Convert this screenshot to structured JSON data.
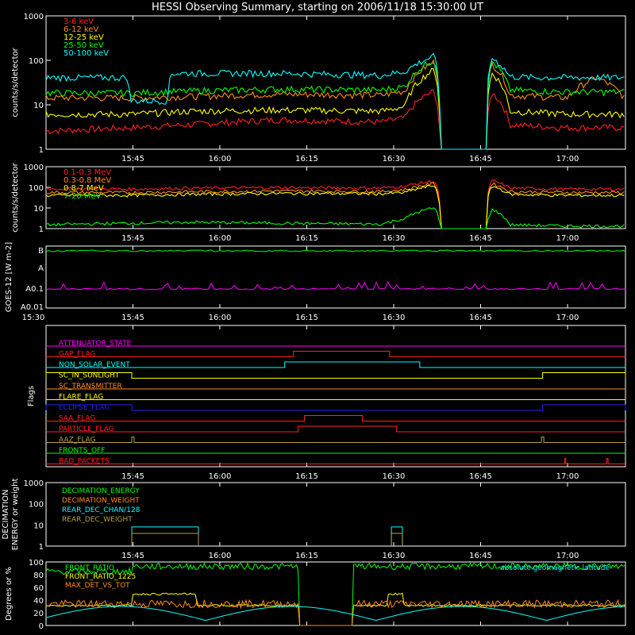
{
  "title": "HESSI Observing Summary, starting on 2006/11/18 15:30:00 UT",
  "time_ticks": [
    "15:45",
    "16:00",
    "16:15",
    "16:30",
    "16:45",
    "17:00"
  ],
  "start_label": "15:30",
  "colors": {
    "red": "#ff2020",
    "orange": "#ff8c1a",
    "yellow": "#ffff00",
    "green": "#00ff00",
    "cyan": "#00ffff",
    "magenta": "#ff00ff",
    "blue": "#2020ff",
    "olive": "#b8a040",
    "white": "#ffffff"
  },
  "chart_data": [
    {
      "type": "line",
      "name": "panel-lightcurves-low",
      "ylabel": "counts/s/detector",
      "scale": "log",
      "ylim": [
        1,
        1000
      ],
      "yticks": [
        "1",
        "10",
        "100",
        "1000"
      ],
      "xlim": [
        "15:30",
        "17:10"
      ],
      "legend": [
        "3-6 keV",
        "6-12 keV",
        "12-25 keV",
        "25-50 keV",
        "50-100 keV"
      ],
      "series": [
        {
          "name": "3-6 keV",
          "color": "red",
          "x": [
            0,
            15,
            25,
            40,
            58,
            62,
            67,
            68,
            76,
            77,
            80,
            85,
            90,
            95,
            100
          ],
          "y": [
            2.5,
            3,
            3.5,
            4.5,
            4,
            5,
            20,
            1,
            1,
            18,
            3.5,
            3.2,
            3,
            3,
            3
          ]
        },
        {
          "name": "6-12 keV",
          "color": "orange",
          "x": [
            0,
            15,
            25,
            40,
            58,
            62,
            67,
            68,
            76,
            77,
            80,
            85,
            90,
            95,
            100
          ],
          "y": [
            14,
            14,
            15,
            17,
            16,
            20,
            90,
            1,
            1,
            80,
            16,
            15,
            14,
            40,
            13
          ]
        },
        {
          "name": "12-25 keV",
          "color": "yellow",
          "x": [
            0,
            15,
            25,
            40,
            58,
            62,
            67,
            68,
            76,
            77,
            80,
            85,
            90,
            95,
            100
          ],
          "y": [
            6,
            6,
            7,
            7.5,
            7,
            9,
            60,
            1,
            1,
            50,
            7,
            6.5,
            6,
            6,
            6
          ]
        },
        {
          "name": "25-50 keV",
          "color": "green",
          "x": [
            0,
            15,
            25,
            40,
            58,
            62,
            67,
            68,
            76,
            77,
            80,
            85,
            90,
            95,
            100
          ],
          "y": [
            18,
            18,
            20,
            22,
            21,
            25,
            100,
            1,
            1,
            90,
            21,
            20,
            19,
            19,
            19
          ]
        },
        {
          "name": "50-100 keV",
          "color": "cyan",
          "x": [
            0,
            14,
            14.5,
            21,
            21.5,
            40,
            58,
            62,
            67,
            68,
            76,
            77,
            80,
            85,
            90,
            95,
            100
          ],
          "y": [
            40,
            40,
            12,
            12,
            50,
            50,
            45,
            55,
            120,
            1,
            1,
            110,
            42,
            40,
            40,
            40,
            40
          ]
        }
      ]
    },
    {
      "type": "line",
      "name": "panel-lightcurves-high",
      "ylabel": "counts/s/detector",
      "scale": "log",
      "ylim": [
        1,
        1000
      ],
      "yticks": [
        "1",
        "10",
        "100",
        "1000"
      ],
      "xlim": [
        "15:30",
        "17:10"
      ],
      "legend": [
        "0.1-0.3 MeV",
        "0.3-0.8 MeV",
        "0.8-7 MeV",
        "7-20 MeV"
      ],
      "series": [
        {
          "name": "0.1-0.3 MeV",
          "color": "red",
          "x": [
            0,
            15,
            25,
            40,
            58,
            62,
            67,
            68,
            76,
            77,
            80,
            85,
            90,
            95,
            100
          ],
          "y": [
            85,
            80,
            90,
            95,
            90,
            110,
            200,
            1,
            1,
            200,
            90,
            85,
            80,
            80,
            80
          ]
        },
        {
          "name": "0.3-0.8 MeV",
          "color": "orange",
          "x": [
            0,
            15,
            25,
            40,
            58,
            62,
            67,
            68,
            76,
            77,
            80,
            85,
            90,
            95,
            100
          ],
          "y": [
            55,
            55,
            60,
            65,
            62,
            75,
            150,
            1,
            1,
            150,
            60,
            58,
            55,
            55,
            55
          ]
        },
        {
          "name": "0.8-7 MeV",
          "color": "yellow",
          "x": [
            0,
            15,
            25,
            40,
            58,
            62,
            67,
            68,
            76,
            77,
            80,
            85,
            90,
            95,
            100
          ],
          "y": [
            40,
            40,
            45,
            50,
            48,
            55,
            120,
            1,
            1,
            110,
            45,
            42,
            40,
            40,
            40
          ]
        },
        {
          "name": "7-20 MeV",
          "color": "green",
          "x": [
            0,
            15,
            25,
            40,
            58,
            62,
            67,
            68,
            76,
            77,
            80,
            85,
            90,
            95,
            100
          ],
          "y": [
            1.5,
            1.8,
            2,
            1.8,
            1.6,
            3,
            10,
            1,
            1,
            8,
            1.5,
            1.4,
            1.3,
            1.3,
            1.3
          ]
        }
      ]
    },
    {
      "type": "line",
      "name": "panel-goes",
      "ylabel": "GOES-12 [W m-2]",
      "yticks": [
        "A0.01",
        "A0.1",
        "A",
        "B"
      ],
      "series": [
        {
          "name": "long",
          "color": "green",
          "level": "B"
        },
        {
          "name": "short",
          "color": "magenta",
          "level": "A0.1"
        }
      ]
    },
    {
      "type": "line",
      "name": "panel-flags",
      "ylabel": "Flags",
      "flags": [
        {
          "label": "ATTENUATOR_STATE",
          "color": "magenta",
          "on": []
        },
        {
          "label": "GAP_FLAG",
          "color": "red",
          "on": [
            [
              42.7,
              59.3
            ]
          ]
        },
        {
          "label": "NON_SOLAR_EVENT",
          "color": "cyan",
          "on": [
            [
              41.2,
              64.5
            ]
          ]
        },
        {
          "label": "SC_IN_SUNLIGHT",
          "color": "yellow",
          "on": [
            [
              0,
              14.8
            ],
            [
              85.7,
              100
            ]
          ]
        },
        {
          "label": "SC_TRANSMITTER",
          "color": "orange",
          "on": []
        },
        {
          "label": "FLARE_FLAG",
          "color": "yellow",
          "on": []
        },
        {
          "label": "ECLIPSE_FLAG",
          "color": "blue",
          "on": [
            [
              0,
              14.8
            ],
            [
              85.7,
              100
            ]
          ]
        },
        {
          "label": "SAA_FLAG",
          "color": "red",
          "on": [
            [
              44.6,
              54.6
            ]
          ]
        },
        {
          "label": "PARTICLE_FLAG",
          "color": "red",
          "on": [
            [
              43.5,
              60.5
            ]
          ]
        },
        {
          "label": "AAZ_FLAG",
          "color": "olive",
          "on": [
            [
              14.8,
              15.2
            ],
            [
              85.5,
              85.9
            ]
          ]
        },
        {
          "label": "FRONTS_OFF",
          "color": "green",
          "on": []
        },
        {
          "label": "BAD_PACKETS",
          "color": "red",
          "on": [
            [
              89.5,
              89.7
            ],
            [
              96.8,
              97.0
            ]
          ]
        }
      ]
    },
    {
      "type": "line",
      "name": "panel-decimation",
      "ylabel": "DECIMATION ENERGY or weight",
      "scale": "log",
      "yticks": [
        "1",
        "10",
        "100",
        "1000"
      ],
      "legend": [
        "DECIMATION_ENERGY",
        "DECIMATION_WEIGHT",
        "REAR_DEC_CHAN/128",
        "REAR_DEC_WEIGHT"
      ],
      "series": [
        {
          "name": "REAR_DEC_CHAN/128",
          "color": "cyan",
          "steps": [
            [
              14.8,
              8
            ],
            [
              26.3,
              0
            ],
            [
              59.6,
              8
            ],
            [
              61.5,
              0
            ]
          ]
        },
        {
          "name": "REAR_DEC_WEIGHT",
          "color": "olive",
          "steps": [
            [
              14.8,
              4
            ],
            [
              26.3,
              0
            ],
            [
              59.6,
              4
            ],
            [
              61.5,
              0
            ]
          ]
        }
      ]
    },
    {
      "type": "line",
      "name": "panel-ratios",
      "ylabel": "Degrees or %",
      "ylim": [
        0,
        100
      ],
      "yticks": [
        "0",
        "20",
        "40",
        "60",
        "80",
        "100"
      ],
      "legend": [
        "FRONT_RATIO",
        "FRONT_RATIO_1225",
        "MAX_DET_VS_TOT",
        "absolute geomagnetic latitude"
      ],
      "series": [
        {
          "name": "FRONT_RATIO",
          "color": "green"
        },
        {
          "name": "FRONT_RATIO_1225",
          "color": "yellow"
        },
        {
          "name": "MAX_DET_VS_TOT",
          "color": "orange"
        },
        {
          "name": "absolute geomagnetic latitude",
          "color": "cyan"
        }
      ]
    }
  ]
}
